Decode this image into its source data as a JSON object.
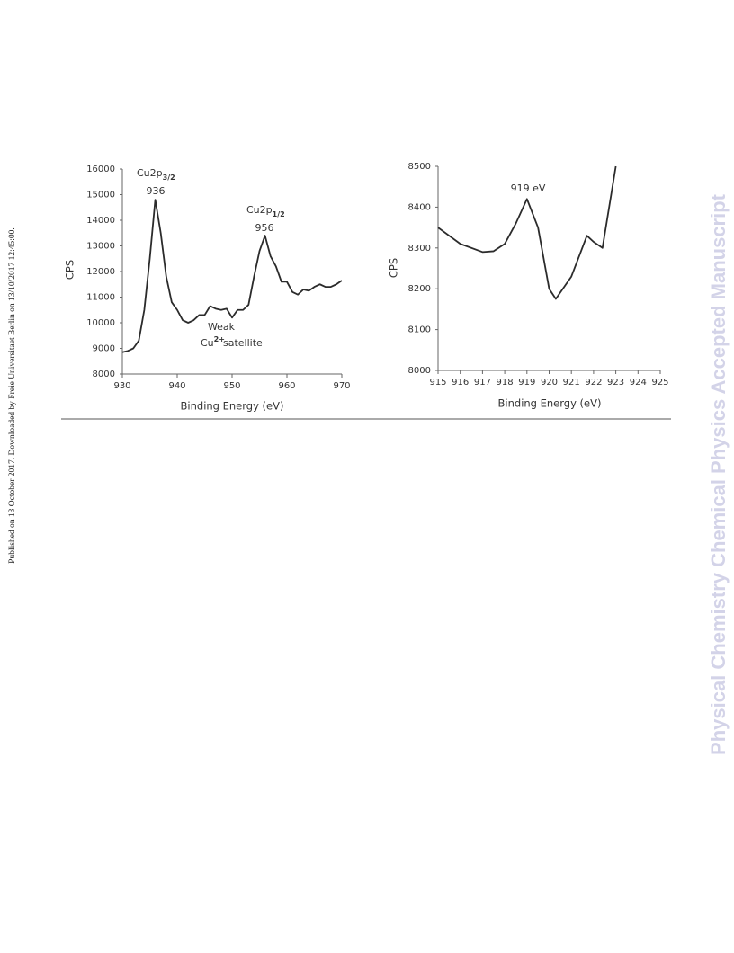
{
  "side_note": "Published on 13 October 2017. Downloaded by Freie Universitaet Berlin on 13/10/2017 12:45:00.",
  "watermark": "Physical Chemistry Chemical Physics Accepted Manuscript",
  "chart_data": [
    {
      "type": "line",
      "x_label": "Binding Energy (eV)",
      "y_label": "CPS",
      "color": "#2b2b2b",
      "xlim": [
        930,
        970
      ],
      "xticks": [
        930,
        940,
        950,
        960,
        970
      ],
      "ylim": [
        8000,
        16000
      ],
      "yticks": [
        8000,
        9000,
        10000,
        11000,
        12000,
        13000,
        14000,
        15000,
        16000
      ],
      "x": [
        930,
        931,
        932,
        933,
        934,
        935,
        936,
        937,
        938,
        939,
        940,
        941,
        942,
        943,
        944,
        945,
        946,
        947,
        948,
        949,
        950,
        951,
        952,
        953,
        954,
        955,
        956,
        957,
        958,
        959,
        960,
        961,
        962,
        963,
        964,
        965,
        966,
        967,
        968,
        969,
        970
      ],
      "values": [
        8850,
        8900,
        9000,
        9300,
        10500,
        12500,
        14800,
        13500,
        11800,
        10800,
        10500,
        10100,
        10000,
        10100,
        10300,
        10300,
        10650,
        10550,
        10500,
        10550,
        10200,
        10500,
        10500,
        10700,
        11800,
        12800,
        13400,
        12600,
        12200,
        11600,
        11600,
        11200,
        11100,
        11300,
        11250,
        11400,
        11500,
        11400,
        11400,
        11500,
        11650
      ],
      "annotations": [
        {
          "text": "Cu2p",
          "sub": "3/2"
        },
        {
          "text": "936"
        },
        {
          "text": "Cu2p",
          "sub": "1/2"
        },
        {
          "text": "956"
        },
        {
          "text": "Weak"
        },
        {
          "text": "Cu",
          "sup": "2+"
        },
        {
          "text": "satellite"
        }
      ]
    },
    {
      "type": "line",
      "x_label": "Binding Energy (eV)",
      "y_label": "CPS",
      "color": "#2b2b2b",
      "xlim": [
        915,
        925
      ],
      "xticks": [
        915,
        916,
        917,
        918,
        919,
        920,
        921,
        922,
        923,
        924,
        925
      ],
      "ylim": [
        8000,
        8500
      ],
      "yticks": [
        8000,
        8100,
        8200,
        8300,
        8400,
        8500
      ],
      "x": [
        915,
        916,
        917,
        917.5,
        918,
        918.5,
        919,
        919.5,
        920,
        920.3,
        921,
        921.7,
        922,
        922.4,
        923
      ],
      "values": [
        8350,
        8310,
        8290,
        8292,
        8310,
        8360,
        8420,
        8350,
        8200,
        8175,
        8230,
        8330,
        8315,
        8300,
        8500
      ],
      "annotations": [
        {
          "text": "919 eV"
        }
      ]
    }
  ]
}
